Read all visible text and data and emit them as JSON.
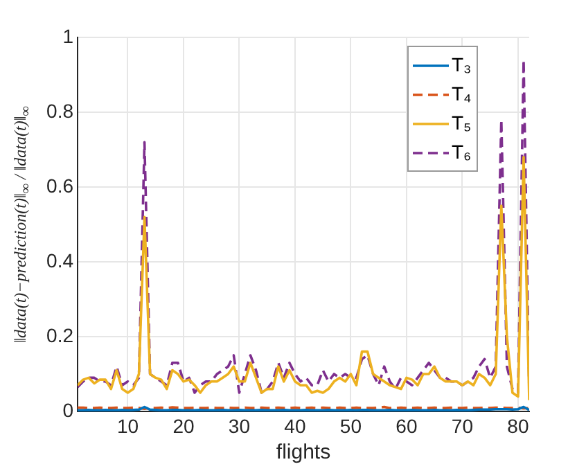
{
  "chart_data": {
    "type": "line",
    "xlabel": "flights",
    "ylabel": "‖data(t)−prediction(t)‖$_{∞}$ / ‖data(t)‖$_{∞}$",
    "x": [
      1,
      2,
      3,
      4,
      5,
      6,
      7,
      8,
      9,
      10,
      11,
      12,
      13,
      14,
      15,
      16,
      17,
      18,
      19,
      20,
      21,
      22,
      23,
      24,
      25,
      26,
      27,
      28,
      29,
      30,
      31,
      32,
      33,
      34,
      35,
      36,
      37,
      38,
      39,
      40,
      41,
      42,
      43,
      44,
      45,
      46,
      47,
      48,
      49,
      50,
      51,
      52,
      53,
      54,
      55,
      56,
      57,
      58,
      59,
      60,
      61,
      62,
      63,
      64,
      65,
      66,
      67,
      68,
      69,
      70,
      71,
      72,
      73,
      74,
      75,
      76,
      77,
      78,
      79,
      80,
      81,
      82
    ],
    "series": [
      {
        "name": "T₃",
        "color": "#0072bd",
        "line_style": "solid",
        "values": [
          0.003,
          0.003,
          0.004,
          0.003,
          0.003,
          0.004,
          0.003,
          0.003,
          0.004,
          0.003,
          0.004,
          0.005,
          0.012,
          0.005,
          0.004,
          0.003,
          0.003,
          0.004,
          0.004,
          0.003,
          0.003,
          0.003,
          0.004,
          0.003,
          0.003,
          0.003,
          0.004,
          0.003,
          0.003,
          0.004,
          0.003,
          0.003,
          0.003,
          0.004,
          0.003,
          0.003,
          0.003,
          0.004,
          0.003,
          0.003,
          0.003,
          0.004,
          0.003,
          0.003,
          0.003,
          0.004,
          0.003,
          0.003,
          0.003,
          0.004,
          0.003,
          0.004,
          0.004,
          0.003,
          0.003,
          0.003,
          0.004,
          0.003,
          0.003,
          0.003,
          0.004,
          0.003,
          0.003,
          0.003,
          0.004,
          0.003,
          0.003,
          0.003,
          0.004,
          0.003,
          0.003,
          0.004,
          0.005,
          0.005,
          0.005,
          0.006,
          0.006,
          0.006,
          0.005,
          0.006,
          0.012,
          0.004
        ]
      },
      {
        "name": "T₄",
        "color": "#d95319",
        "line_style": "dashed",
        "values": [
          0.01,
          0.01,
          0.009,
          0.009,
          0.01,
          0.009,
          0.009,
          0.01,
          0.009,
          0.009,
          0.01,
          0.009,
          0.007,
          0.009,
          0.009,
          0.01,
          0.009,
          0.011,
          0.01,
          0.009,
          0.009,
          0.01,
          0.009,
          0.009,
          0.01,
          0.009,
          0.009,
          0.01,
          0.009,
          0.009,
          0.01,
          0.009,
          0.009,
          0.01,
          0.009,
          0.009,
          0.01,
          0.009,
          0.009,
          0.01,
          0.009,
          0.009,
          0.01,
          0.009,
          0.01,
          0.009,
          0.009,
          0.01,
          0.009,
          0.009,
          0.01,
          0.009,
          0.009,
          0.009,
          0.01,
          0.012,
          0.009,
          0.009,
          0.01,
          0.009,
          0.009,
          0.01,
          0.009,
          0.009,
          0.01,
          0.009,
          0.009,
          0.01,
          0.009,
          0.009,
          0.01,
          0.009,
          0.009,
          0.01,
          0.009,
          0.01,
          0.01,
          0.009,
          0.009,
          0.01,
          0.008,
          0.009
        ]
      },
      {
        "name": "T₅",
        "color": "#edb120",
        "line_style": "solid",
        "values": [
          0.07,
          0.085,
          0.09,
          0.075,
          0.085,
          0.085,
          0.06,
          0.11,
          0.06,
          0.05,
          0.06,
          0.1,
          0.52,
          0.1,
          0.09,
          0.085,
          0.06,
          0.11,
          0.1,
          0.08,
          0.085,
          0.07,
          0.05,
          0.07,
          0.08,
          0.08,
          0.09,
          0.1,
          0.12,
          0.08,
          0.08,
          0.13,
          0.09,
          0.05,
          0.06,
          0.06,
          0.12,
          0.08,
          0.11,
          0.08,
          0.07,
          0.07,
          0.05,
          0.055,
          0.05,
          0.06,
          0.08,
          0.09,
          0.08,
          0.1,
          0.07,
          0.16,
          0.16,
          0.1,
          0.09,
          0.08,
          0.07,
          0.065,
          0.06,
          0.09,
          0.085,
          0.07,
          0.1,
          0.1,
          0.12,
          0.09,
          0.08,
          0.08,
          0.08,
          0.07,
          0.08,
          0.07,
          0.1,
          0.09,
          0.07,
          0.1,
          0.55,
          0.2,
          0.05,
          0.04,
          0.68,
          0.03
        ]
      },
      {
        "name": "T₆",
        "color": "#7e2f8e",
        "line_style": "dashed",
        "values": [
          0.065,
          0.08,
          0.09,
          0.09,
          0.08,
          0.08,
          0.07,
          0.12,
          0.07,
          0.08,
          0.07,
          0.09,
          0.72,
          0.1,
          0.09,
          0.08,
          0.07,
          0.13,
          0.13,
          0.08,
          0.09,
          0.05,
          0.07,
          0.08,
          0.08,
          0.1,
          0.11,
          0.12,
          0.15,
          0.05,
          0.1,
          0.15,
          0.11,
          0.05,
          0.06,
          0.08,
          0.13,
          0.09,
          0.13,
          0.1,
          0.08,
          0.09,
          0.07,
          0.07,
          0.11,
          0.08,
          0.1,
          0.09,
          0.1,
          0.09,
          0.09,
          0.14,
          0.15,
          0.1,
          0.07,
          0.12,
          0.08,
          0.06,
          0.09,
          0.08,
          0.07,
          0.09,
          0.11,
          0.13,
          0.11,
          0.09,
          0.09,
          0.08,
          0.08,
          0.07,
          0.08,
          0.09,
          0.12,
          0.14,
          0.09,
          0.12,
          0.78,
          0.12,
          0.06,
          0.05,
          0.94,
          0.05
        ]
      }
    ],
    "xlim": [
      1,
      82
    ],
    "xticks": [
      10,
      20,
      30,
      40,
      50,
      60,
      70,
      80
    ],
    "ylim": [
      0,
      1
    ],
    "yticks": [
      0,
      0.2,
      0.4,
      0.6,
      0.8,
      1
    ],
    "grid": true,
    "legend": "top right",
    "marker": "none"
  }
}
